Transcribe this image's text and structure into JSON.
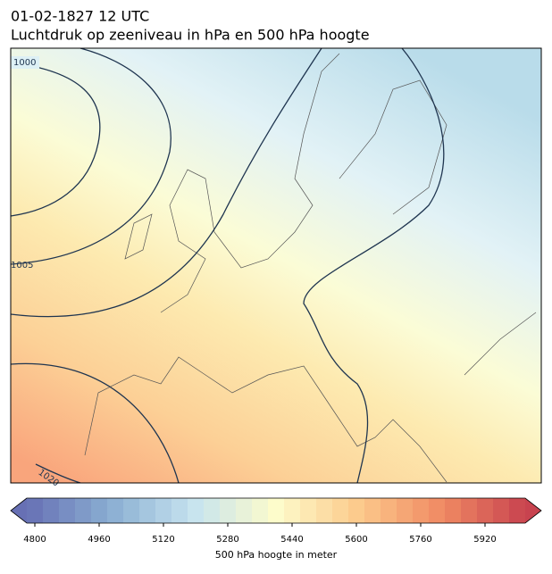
{
  "header": {
    "title": "01-02-1827 12 UTC",
    "subtitle": "Luchtdruk op zeeniveau in hPa en 500 hPa hoogte"
  },
  "map": {
    "contour_labels": [
      "1000",
      "1005",
      "1020"
    ]
  },
  "colorbar": {
    "lim": [
      4780,
      6020
    ],
    "ticks": [
      4800,
      4960,
      5120,
      5280,
      5440,
      5600,
      5760,
      5920
    ],
    "label": "500 hPa hoogte in meter",
    "colormap": [
      "#6770b4",
      "#8aaed2",
      "#c6e3ef",
      "#fdfccb",
      "#fcc98b",
      "#f08a63",
      "#c8434f"
    ]
  }
}
